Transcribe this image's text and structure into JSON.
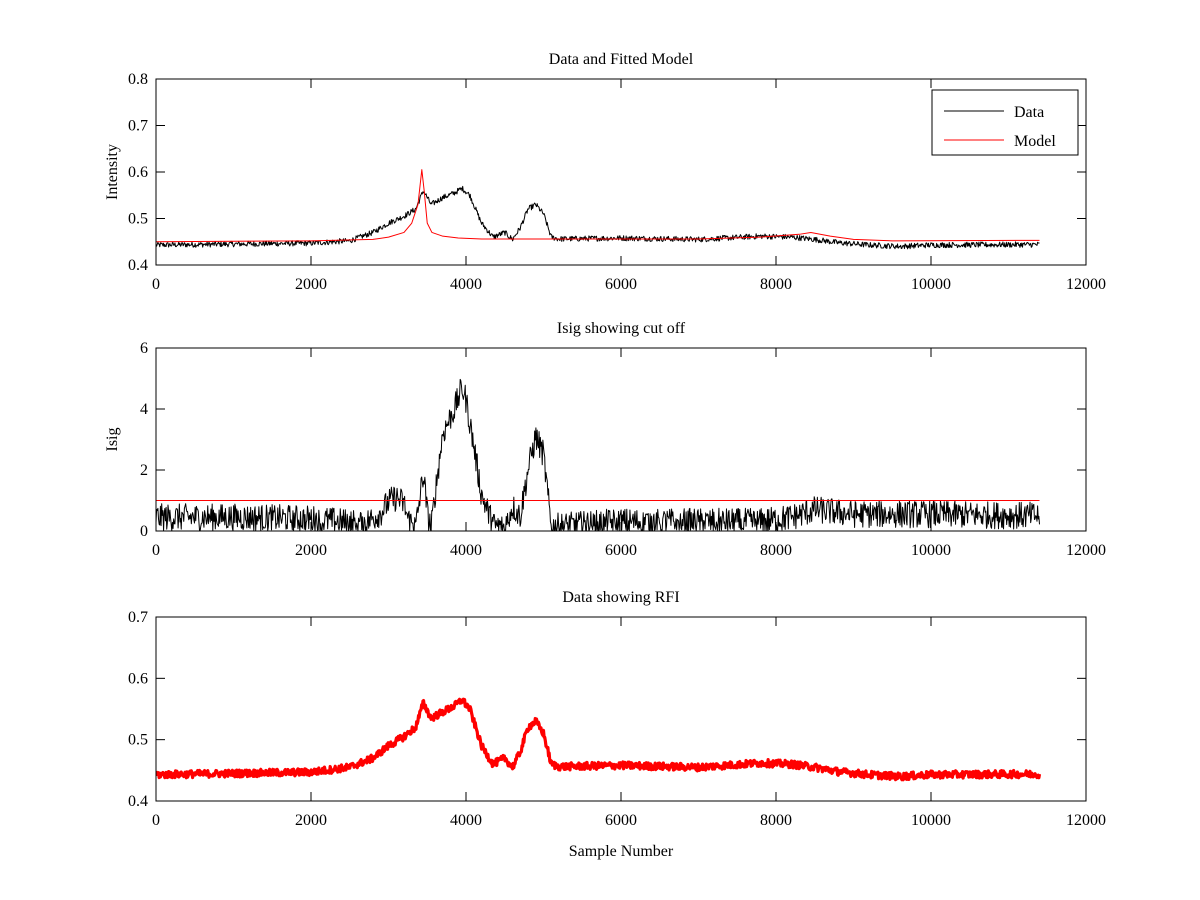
{
  "chart_data": [
    {
      "type": "line",
      "title": "Data and Fitted Model",
      "xlabel": "",
      "ylabel": "Intensity",
      "xlim": [
        0,
        12000
      ],
      "ylim": [
        0.4,
        0.8
      ],
      "xticks": [
        "0",
        "2000",
        "4000",
        "6000",
        "8000",
        "10000",
        "12000"
      ],
      "yticks": [
        "0.4",
        "0.5",
        "0.6",
        "0.7",
        "0.8"
      ],
      "grid": false,
      "legend": {
        "placement": "top-right",
        "entries": [
          {
            "name": "Data",
            "color": "#000000"
          },
          {
            "name": "Model",
            "color": "#ff0000"
          }
        ]
      },
      "series": [
        {
          "name": "Data",
          "color": "#000000",
          "noise": 0.006,
          "x": [
            0,
            500,
            1000,
            1500,
            2000,
            2500,
            2800,
            3000,
            3200,
            3350,
            3450,
            3550,
            3700,
            3850,
            3950,
            4050,
            4200,
            4350,
            4500,
            4600,
            4700,
            4800,
            4900,
            5000,
            5100,
            5200,
            6000,
            7000,
            7800,
            8200,
            8500,
            8800,
            9200,
            9600,
            10000,
            11400
          ],
          "y": [
            0.443,
            0.444,
            0.445,
            0.446,
            0.447,
            0.452,
            0.47,
            0.49,
            0.505,
            0.52,
            0.56,
            0.53,
            0.545,
            0.555,
            0.565,
            0.55,
            0.49,
            0.46,
            0.47,
            0.455,
            0.48,
            0.52,
            0.53,
            0.51,
            0.46,
            0.456,
            0.458,
            0.455,
            0.462,
            0.46,
            0.455,
            0.448,
            0.443,
            0.44,
            0.443,
            0.444
          ]
        },
        {
          "name": "Model",
          "color": "#ff0000",
          "noise": 0,
          "x": [
            0,
            1000,
            2000,
            2800,
            3000,
            3200,
            3300,
            3380,
            3430,
            3460,
            3500,
            3560,
            3700,
            3900,
            4200,
            5000,
            6000,
            7000,
            7800,
            8300,
            8450,
            8700,
            9000,
            9500,
            11400
          ],
          "y": [
            0.45,
            0.451,
            0.452,
            0.455,
            0.46,
            0.47,
            0.49,
            0.53,
            0.605,
            0.56,
            0.49,
            0.47,
            0.462,
            0.458,
            0.456,
            0.456,
            0.456,
            0.456,
            0.46,
            0.466,
            0.47,
            0.462,
            0.455,
            0.452,
            0.453
          ]
        }
      ]
    },
    {
      "type": "line",
      "title": "Isig showing cut off",
      "xlabel": "",
      "ylabel": "Isig",
      "xlim": [
        0,
        12000
      ],
      "ylim": [
        0,
        6
      ],
      "xticks": [
        "0",
        "2000",
        "4000",
        "6000",
        "8000",
        "10000",
        "12000"
      ],
      "yticks": [
        "0",
        "2",
        "4",
        "6"
      ],
      "grid": false,
      "series": [
        {
          "name": "",
          "color": "#000000",
          "noise": 0.45,
          "x": [
            0,
            1000,
            2000,
            2400,
            2700,
            2900,
            3000,
            3100,
            3200,
            3250,
            3350,
            3450,
            3500,
            3550,
            3600,
            3700,
            3850,
            3950,
            4000,
            4100,
            4200,
            4350,
            4500,
            4600,
            4700,
            4800,
            4900,
            5000,
            5100,
            5200,
            6000,
            7000,
            7800,
            8200,
            8500,
            9000,
            10000,
            11400
          ],
          "y": [
            0.45,
            0.45,
            0.4,
            0.3,
            0.25,
            0.6,
            0.95,
            1.1,
            0.9,
            0.4,
            0.1,
            1.9,
            0.6,
            0.05,
            1.2,
            3.2,
            4.0,
            4.7,
            4.3,
            2.8,
            1.2,
            0.2,
            0.1,
            0.8,
            0.5,
            2.0,
            3.1,
            2.5,
            0.1,
            0.15,
            0.3,
            0.3,
            0.3,
            0.45,
            0.7,
            0.55,
            0.55,
            0.5
          ]
        },
        {
          "name": "",
          "color": "#ff0000",
          "noise": 0,
          "x": [
            0,
            11400
          ],
          "y": [
            1,
            1
          ]
        }
      ]
    },
    {
      "type": "line",
      "title": "Data showing RFI",
      "xlabel": "Sample Number",
      "ylabel": "",
      "xlim": [
        0,
        12000
      ],
      "ylim": [
        0.4,
        0.7
      ],
      "xticks": [
        "0",
        "2000",
        "4000",
        "6000",
        "8000",
        "10000",
        "12000"
      ],
      "yticks": [
        "0.4",
        "0.5",
        "0.6",
        "0.7"
      ],
      "grid": false,
      "series": [
        {
          "name": "",
          "color": "#ff0000",
          "noise": 0.006,
          "thick": true,
          "x": [
            0,
            500,
            1000,
            1500,
            2000,
            2500,
            2800,
            3000,
            3200,
            3350,
            3450,
            3550,
            3700,
            3850,
            3950,
            4050,
            4200,
            4350,
            4500,
            4600,
            4700,
            4800,
            4900,
            5000,
            5100,
            5200,
            6000,
            7000,
            7800,
            8200,
            8500,
            8800,
            9200,
            9600,
            10000,
            11400
          ],
          "y": [
            0.443,
            0.444,
            0.445,
            0.446,
            0.447,
            0.455,
            0.47,
            0.49,
            0.505,
            0.52,
            0.56,
            0.535,
            0.545,
            0.555,
            0.565,
            0.55,
            0.49,
            0.46,
            0.47,
            0.455,
            0.48,
            0.52,
            0.53,
            0.51,
            0.46,
            0.456,
            0.458,
            0.455,
            0.462,
            0.46,
            0.455,
            0.448,
            0.443,
            0.44,
            0.443,
            0.444
          ]
        }
      ]
    }
  ]
}
